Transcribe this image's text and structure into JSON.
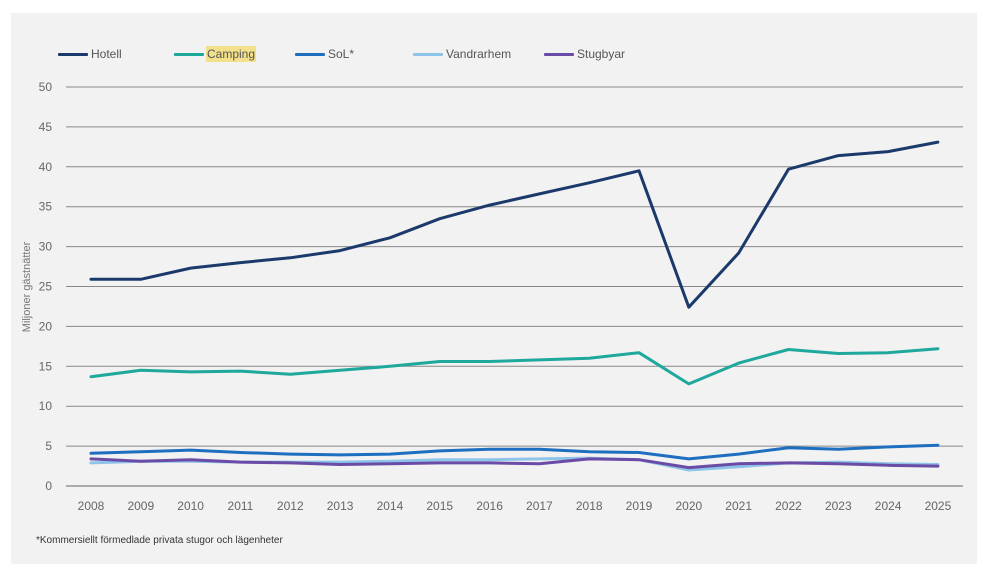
{
  "chart_data": {
    "type": "line",
    "ylabel": "Miljoner gästnätter",
    "xlabel": "",
    "ylim": [
      0,
      50
    ],
    "yticks": [
      0,
      5,
      10,
      15,
      20,
      25,
      30,
      35,
      40,
      45,
      50
    ],
    "grid": true,
    "legend_position": "top-left",
    "categories": [
      "2008",
      "2009",
      "2010",
      "2011",
      "2012",
      "2013",
      "2014",
      "2015",
      "2016",
      "2017",
      "2018",
      "2019",
      "2020",
      "2021",
      "2022",
      "2023",
      "2024",
      "2025"
    ],
    "series": [
      {
        "name": "Hotell",
        "color": "#1b3a6b",
        "values": [
          25.9,
          25.9,
          27.3,
          28.0,
          28.6,
          29.5,
          31.1,
          33.5,
          35.2,
          36.6,
          38.0,
          39.5,
          22.4,
          29.2,
          39.7,
          41.4,
          41.9,
          43.1
        ]
      },
      {
        "name": "Camping",
        "color": "#1fa89c",
        "highlight": "#f3e08a",
        "values": [
          13.7,
          14.5,
          14.3,
          14.4,
          14.0,
          14.5,
          15.0,
          15.6,
          15.6,
          15.8,
          16.0,
          16.7,
          12.8,
          15.4,
          17.1,
          16.6,
          16.7,
          17.2
        ]
      },
      {
        "name": "SoL*",
        "color": "#1f6fc1",
        "values": [
          4.1,
          4.3,
          4.5,
          4.2,
          4.0,
          3.9,
          4.0,
          4.4,
          4.6,
          4.6,
          4.3,
          4.2,
          3.4,
          4.0,
          4.8,
          4.6,
          4.9,
          5.1
        ]
      },
      {
        "name": "Vandrarhem",
        "color": "#8fc4ea",
        "values": [
          2.9,
          3.1,
          3.1,
          3.0,
          3.0,
          3.0,
          3.1,
          3.3,
          3.3,
          3.4,
          3.5,
          3.3,
          2.0,
          2.4,
          2.9,
          3.0,
          2.8,
          2.7
        ]
      },
      {
        "name": "Stugbyar",
        "color": "#6a4ba6",
        "values": [
          3.4,
          3.1,
          3.3,
          3.0,
          2.9,
          2.7,
          2.8,
          2.9,
          2.9,
          2.8,
          3.4,
          3.3,
          2.3,
          2.8,
          2.9,
          2.8,
          2.6,
          2.5
        ]
      }
    ],
    "footnote": "*Kommersiellt förmedlade privata stugor och lägenheter"
  }
}
